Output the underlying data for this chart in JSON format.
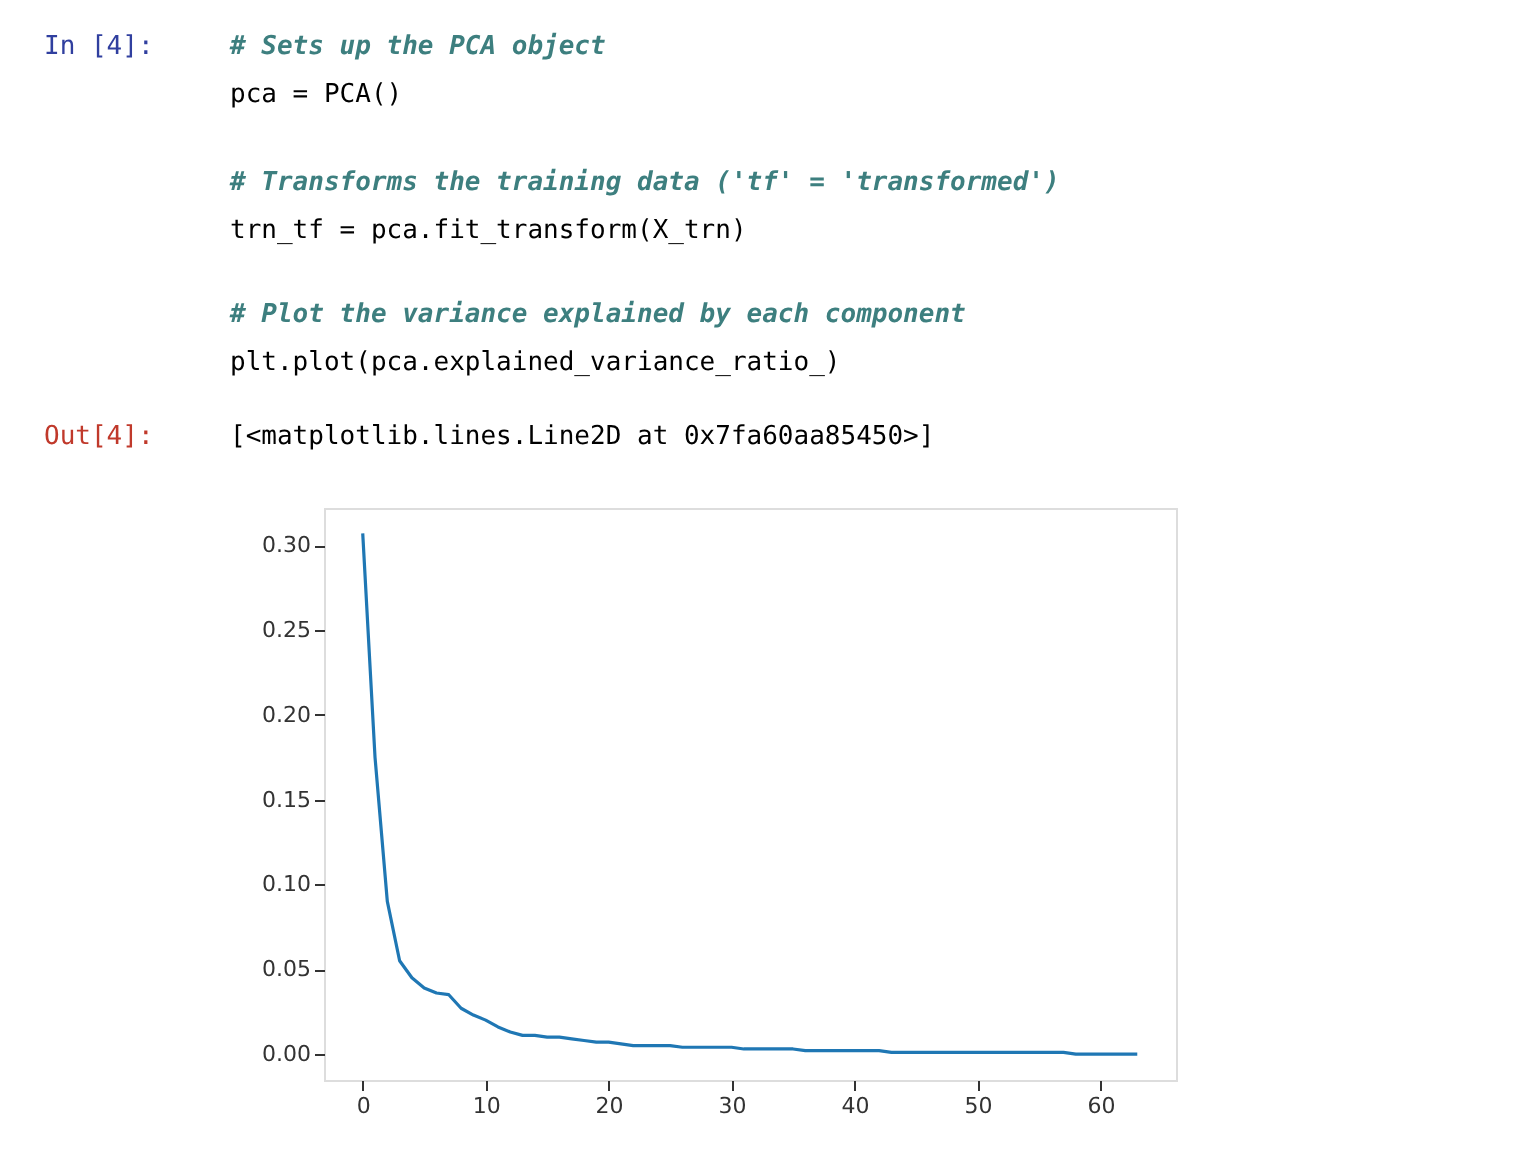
{
  "chart_data": {
    "type": "line",
    "annotations": [
      "In [4]:",
      "# Sets up the PCA object",
      "pca = PCA()",
      "# Transforms the training data ('tf' = 'transformed')",
      "trn_tf = pca.fit_transform(X_trn)",
      "# Plot the variance explained by each component",
      "plt.plot(pca.explained_variance_ratio_)",
      "Out[4]:",
      "[<matplotlib.lines.Line2D at 0x7fa60aa85450>]"
    ],
    "x": [
      0,
      1,
      2,
      3,
      4,
      5,
      6,
      7,
      8,
      9,
      10,
      11,
      12,
      13,
      14,
      15,
      16,
      17,
      18,
      19,
      20,
      21,
      22,
      23,
      24,
      25,
      26,
      27,
      28,
      29,
      30,
      31,
      32,
      33,
      34,
      35,
      36,
      37,
      38,
      39,
      40,
      41,
      42,
      43,
      44,
      45,
      46,
      47,
      48,
      49,
      50,
      51,
      52,
      53,
      54,
      55,
      56,
      57,
      58,
      59,
      60,
      61,
      62,
      63
    ],
    "series": [
      {
        "color": "#1f77b4",
        "values": [
          0.307,
          0.175,
          0.09,
          0.055,
          0.045,
          0.039,
          0.036,
          0.035,
          0.027,
          0.023,
          0.02,
          0.016,
          0.013,
          0.011,
          0.011,
          0.01,
          0.01,
          0.009,
          0.008,
          0.007,
          0.007,
          0.006,
          0.005,
          0.005,
          0.005,
          0.005,
          0.004,
          0.004,
          0.004,
          0.004,
          0.004,
          0.003,
          0.003,
          0.003,
          0.003,
          0.003,
          0.002,
          0.002,
          0.002,
          0.002,
          0.002,
          0.002,
          0.002,
          0.001,
          0.001,
          0.001,
          0.001,
          0.001,
          0.001,
          0.001,
          0.001,
          0.001,
          0.001,
          0.001,
          0.001,
          0.001,
          0.001,
          0.001,
          0.0,
          0.0,
          0.0,
          0.0,
          0.0,
          0.0
        ]
      }
    ],
    "xlim": [
      -3.15,
      66.15
    ],
    "ylim": [
      -0.0153,
      0.322
    ],
    "xticks": [
      0,
      10,
      20,
      30,
      40,
      50,
      60
    ],
    "yticks": [
      {
        "value": 0,
        "label": "0.00"
      },
      {
        "value": 0.05,
        "label": "0.05"
      },
      {
        "value": 0.1,
        "label": "0.10"
      },
      {
        "value": 0.15,
        "label": "0.15"
      },
      {
        "value": 0.2,
        "label": "0.20"
      },
      {
        "value": 0.25,
        "label": "0.25"
      },
      {
        "value": 0.3,
        "label": "0.30"
      }
    ],
    "grid": false
  }
}
